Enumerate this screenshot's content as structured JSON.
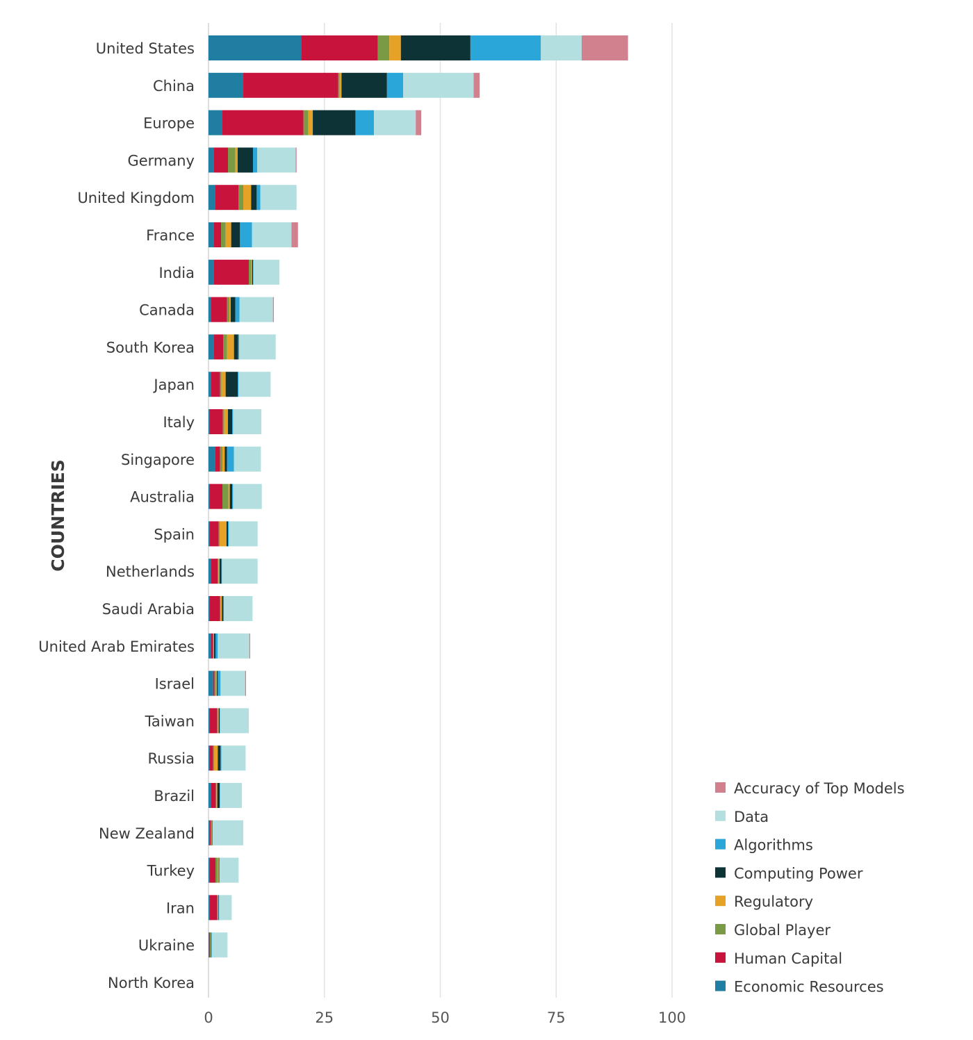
{
  "chart_data": {
    "type": "bar",
    "orientation": "horizontal",
    "stacked": true,
    "ylabel": "COUNTRIES",
    "xlabel": "",
    "xlim": [
      0,
      100
    ],
    "x_ticks": [
      0,
      25,
      50,
      75,
      100
    ],
    "grid": true,
    "legend_position": "bottom-right",
    "categories": [
      "United States",
      "China",
      "Europe",
      "Germany",
      "United Kingdom",
      "France",
      "India",
      "Canada",
      "South Korea",
      "Japan",
      "Italy",
      "Singapore",
      "Australia",
      "Spain",
      "Netherlands",
      "Saudi Arabia",
      "United Arab Emirates",
      "Israel",
      "Taiwan",
      "Russia",
      "Brazil",
      "New Zealand",
      "Turkey",
      "Iran",
      "Ukraine",
      "North Korea"
    ],
    "series": [
      {
        "name": "Economic Resources",
        "color": "#1f7ea1",
        "values": [
          20,
          7.5,
          3,
          1.2,
          1.5,
          1.2,
          1.2,
          0.5,
          1.2,
          0.5,
          0.3,
          1.5,
          0.3,
          0.3,
          0.5,
          0.3,
          0.5,
          1.0,
          0.3,
          0.3,
          0.5,
          0.2,
          0.3,
          0.2,
          0.1,
          0
        ]
      },
      {
        "name": "Human Capital",
        "color": "#c8143c",
        "values": [
          16.5,
          20.5,
          17.5,
          3,
          5,
          1.5,
          7.5,
          3.5,
          2,
          2,
          2.8,
          1,
          2.7,
          1.9,
          1.5,
          2.2,
          0.5,
          0.3,
          1.6,
          0.7,
          1.1,
          0.3,
          1.2,
          1.7,
          0.2,
          0
        ]
      },
      {
        "name": "Global Player",
        "color": "#7a9a45",
        "values": [
          2.5,
          0.3,
          1,
          1.6,
          1,
          1,
          0.5,
          0.5,
          0.8,
          0.3,
          0.3,
          0.5,
          1.3,
          0.2,
          0.2,
          0.1,
          0.1,
          0.3,
          0.1,
          0.2,
          0.1,
          0.1,
          0.5,
          0.1,
          0.1,
          0
        ]
      },
      {
        "name": "Regulatory",
        "color": "#e6a127",
        "values": [
          2.5,
          0.4,
          1,
          0.5,
          1.7,
          1.2,
          0.2,
          0.3,
          1.5,
          0.9,
          0.8,
          0.5,
          0.3,
          1.5,
          0.2,
          0.3,
          0.1,
          0.2,
          0.2,
          0.8,
          0.2,
          0.1,
          0.2,
          0.1,
          0.1,
          0
        ]
      },
      {
        "name": "Computing Power",
        "color": "#0e3337",
        "values": [
          15,
          9.8,
          9.2,
          3.3,
          1.2,
          1.9,
          0.2,
          1,
          0.9,
          2.6,
          0.9,
          0.5,
          0.5,
          0.3,
          0.4,
          0.3,
          0.3,
          0.2,
          0.2,
          0.6,
          0.5,
          0.1,
          0.1,
          0.1,
          0.1,
          0
        ]
      },
      {
        "name": "Algorithms",
        "color": "#2aa6d8",
        "values": [
          15.2,
          3.5,
          4,
          0.9,
          0.8,
          2.6,
          0.1,
          0.9,
          0.2,
          0.2,
          0.2,
          1.5,
          0.2,
          0.2,
          0.1,
          0.1,
          0.5,
          0.6,
          0.1,
          0.2,
          0.1,
          0.1,
          0.1,
          0.1,
          0.1,
          0
        ]
      },
      {
        "name": "Data",
        "color": "#b3dfe0",
        "values": [
          8.8,
          15.2,
          9,
          8.3,
          7.8,
          8.5,
          5.6,
          7.2,
          7.9,
          6.9,
          6.1,
          5.8,
          6.2,
          6.2,
          7.7,
          6.2,
          6.8,
          5.3,
          6.2,
          5.2,
          4.7,
          6.6,
          4.1,
          2.7,
          3.4,
          0
        ]
      },
      {
        "name": "Accuracy of Top Models",
        "color": "#d1808e",
        "values": [
          10,
          1.3,
          1.2,
          0.2,
          0,
          1.4,
          0,
          0.2,
          0,
          0,
          0,
          0,
          0,
          0,
          0,
          0,
          0.2,
          0.2,
          0,
          0,
          0,
          0,
          0,
          0,
          0,
          0
        ]
      }
    ]
  }
}
